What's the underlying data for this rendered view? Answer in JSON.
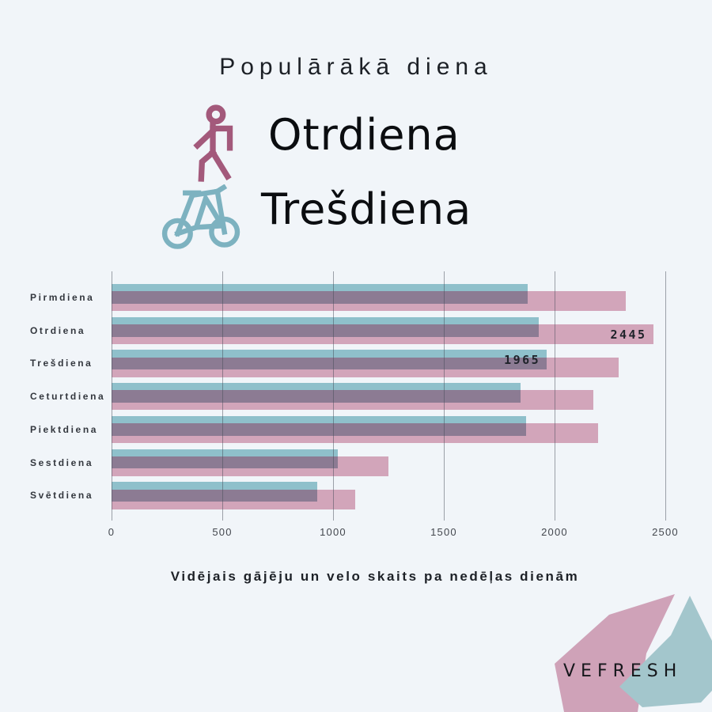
{
  "header": {
    "title": "Populārākā diena"
  },
  "highlight": {
    "pedestrian_day": "Otrdiena",
    "bike_day": "Trešdiena"
  },
  "chart_data": {
    "type": "bar",
    "orientation": "horizontal",
    "categories": [
      "Pirmdiena",
      "Otrdiena",
      "Trešdiena",
      "Ceturtdiena",
      "Piektdiena",
      "Sestdiena",
      "Svētdiena"
    ],
    "series": [
      {
        "name": "velo",
        "color": "#8fc0cb",
        "values": [
          1880,
          1930,
          1965,
          1845,
          1870,
          1020,
          930
        ]
      },
      {
        "name": "gājēji",
        "color": "#d2a5ba",
        "values": [
          2320,
          2445,
          2290,
          2175,
          2195,
          1250,
          1100
        ]
      }
    ],
    "overlap_color": "#8c7b93",
    "annotations": [
      {
        "series": "gājēji",
        "category": "Otrdiena",
        "label": "2445"
      },
      {
        "series": "velo",
        "category": "Trešdiena",
        "label": "1965"
      }
    ],
    "x_ticks": [
      0,
      500,
      1000,
      1500,
      2000,
      2500
    ],
    "xlim": [
      0,
      2500
    ],
    "grid": true,
    "legend_position": "none",
    "title": "",
    "xlabel": "",
    "ylabel": ""
  },
  "caption": "Vidējais gājēju un velo skaits pa nedēļas dienām",
  "logo": {
    "text": "VEFRESH",
    "pink_shape_color": "#cfa2b8",
    "teal_shape_color": "#a3c6cc"
  },
  "colors": {
    "background": "#f1f5f9",
    "person_icon": "#a3597b",
    "bike_icon": "#7db2c0",
    "bar_teal": "#8fc0cb",
    "bar_pink": "#d2a5ba",
    "bar_overlap": "#8c7b93",
    "gridline": "rgba(70,76,88,0.5)"
  }
}
